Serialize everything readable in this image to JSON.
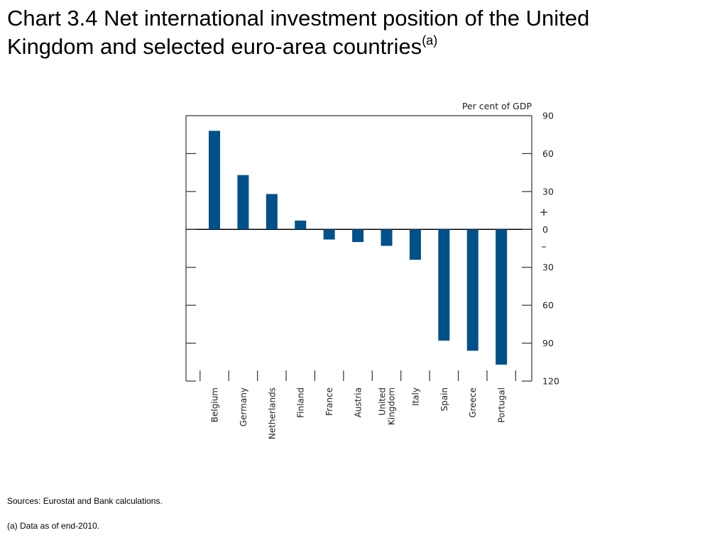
{
  "title": {
    "line1": "Chart 3.4  Net international investment position of the United",
    "line2": "Kingdom and selected euro-area countries",
    "marker": "(a)"
  },
  "chart_data": {
    "type": "bar",
    "unit_label": "Per cent of GDP",
    "categories": [
      "Belgium",
      "Germany",
      "Netherlands",
      "Finland",
      "France",
      "Austria",
      "United Kingdom",
      "Italy",
      "Spain",
      "Greece",
      "Portugal"
    ],
    "category_lines": [
      [
        "Belgium"
      ],
      [
        "Germany"
      ],
      [
        "Netherlands"
      ],
      [
        "Finland"
      ],
      [
        "France"
      ],
      [
        "Austria"
      ],
      [
        "United",
        "Kingdom"
      ],
      [
        "Italy"
      ],
      [
        "Spain"
      ],
      [
        "Greece"
      ],
      [
        "Portugal"
      ]
    ],
    "values": [
      78,
      43,
      28,
      7,
      -8,
      -10,
      -13,
      -24,
      -88,
      -96,
      -107
    ],
    "ylim": [
      -120,
      90
    ],
    "ticks": [
      90,
      60,
      30,
      0,
      -30,
      -60,
      -90,
      -120
    ],
    "tick_labels": [
      "90",
      "60",
      "30",
      "0",
      "30",
      "60",
      "90",
      "120"
    ],
    "sign_plus": "+",
    "sign_minus": "–",
    "bar_color": "#00508a",
    "grid": false
  },
  "footer": {
    "sources": "Sources:  Eurostat and Bank calculations.",
    "note": "(a)  Data as of end-2010."
  }
}
